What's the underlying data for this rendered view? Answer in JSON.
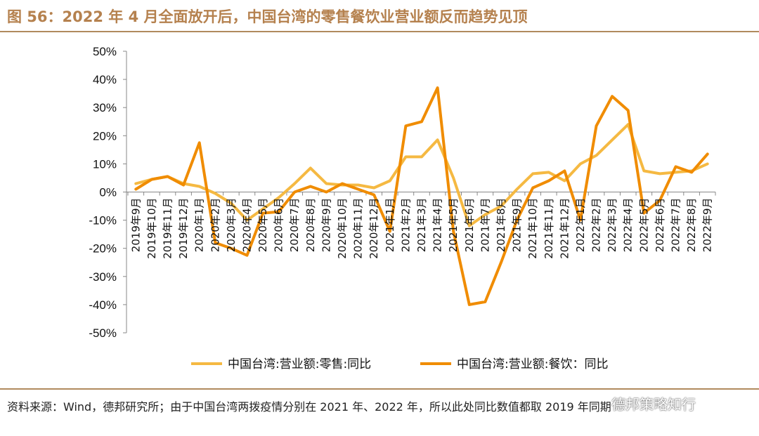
{
  "title": "图 56：2022 年 4 月全面放开后，中国台湾的零售餐饮业营业额反而趋势见顶",
  "source": "资料来源：Wind，德邦研究所；由于中国台湾两拨疫情分别在 2021 年、2022 年，所以此处同比数值都取 2019 年同期",
  "watermark": "德邦策略知行",
  "colors": {
    "retail": "#f5b942",
    "catering": "#f08c00",
    "rule": "#b08a5e"
  },
  "chart_data": {
    "type": "line",
    "y_tick_labels": [
      "50%",
      "40%",
      "30%",
      "20%",
      "10%",
      "0%",
      "-10%",
      "-20%",
      "-30%",
      "-40%",
      "-50%"
    ],
    "ylim": [
      -50,
      50
    ],
    "x": [
      "2019年9月",
      "2019年10月",
      "2019年11月",
      "2019年12月",
      "2020年1月",
      "2020年2月",
      "2020年3月",
      "2020年4月",
      "2020年5月",
      "2020年6月",
      "2020年7月",
      "2020年8月",
      "2020年9月",
      "2020年10月",
      "2020年11月",
      "2020年12月",
      "2021年1月",
      "2021年2月",
      "2021年3月",
      "2021年4月",
      "2021年5月",
      "2021年6月",
      "2021年7月",
      "2021年8月",
      "2021年9月",
      "2021年10月",
      "2021年11月",
      "2021年12月",
      "2022年1月",
      "2022年2月",
      "2022年3月",
      "2022年4月",
      "2022年5月",
      "2022年6月",
      "2022年7月",
      "2022年8月",
      "2022年9月"
    ],
    "series": [
      {
        "name": "中国台湾:营业额:零售:同比",
        "color": "#f5b942",
        "values": [
          3,
          4.5,
          5.5,
          3,
          2,
          -0.5,
          -4,
          -10,
          -6,
          -2,
          3,
          8.5,
          3,
          2.5,
          2.5,
          1.5,
          4,
          12.5,
          12.5,
          18.5,
          5,
          -12,
          -8,
          -5,
          1,
          6.5,
          7,
          4,
          10,
          13,
          18.5,
          24,
          7.5,
          6.5,
          7,
          7.5,
          10
        ]
      },
      {
        "name": "中国台湾:营业额:餐饮：同比",
        "color": "#f08c00",
        "values": [
          1,
          4.5,
          5.5,
          2.5,
          17.5,
          -18,
          -20,
          -22.5,
          -7.5,
          -7,
          0,
          2,
          0,
          3,
          1,
          -1,
          -14,
          23.5,
          25,
          37,
          -14,
          -40,
          -39,
          -25,
          -10,
          1.5,
          4,
          7.5,
          -10,
          23.5,
          34,
          29,
          -7.5,
          -3,
          9,
          7,
          13.5
        ]
      }
    ],
    "legend": "bottom-center",
    "grid": false
  }
}
